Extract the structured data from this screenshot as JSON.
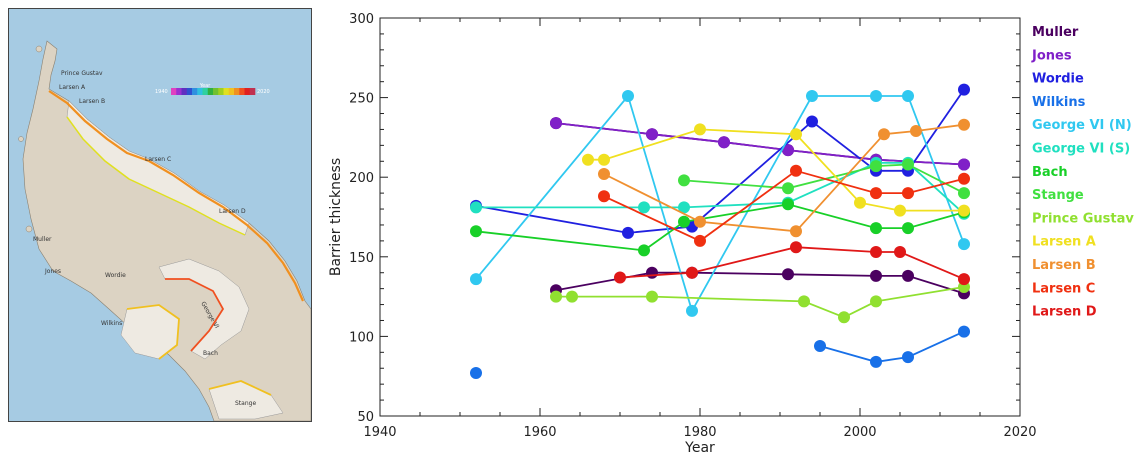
{
  "map": {
    "colorbar_title": "Year",
    "colorbar_min": "1940",
    "colorbar_max": "2020",
    "colorbar_colors": [
      "#e040c0",
      "#9b30d0",
      "#6030c0",
      "#3050d0",
      "#3090e0",
      "#30c0e0",
      "#30d0a0",
      "#30b040",
      "#70c030",
      "#a0d020",
      "#e0e020",
      "#f0c020",
      "#f09020",
      "#f05020",
      "#e02020",
      "#c03050"
    ],
    "labels": [
      {
        "id": "prince-gustav",
        "text": "Prince Gustav"
      },
      {
        "id": "larsen-a",
        "text": "Larsen A"
      },
      {
        "id": "larsen-b",
        "text": "Larsen B"
      },
      {
        "id": "larsen-c",
        "text": "Larsen C"
      },
      {
        "id": "larsen-d",
        "text": "Larsen D"
      },
      {
        "id": "muller",
        "text": "Muller"
      },
      {
        "id": "jones",
        "text": "Jones"
      },
      {
        "id": "wordie",
        "text": "Wordie"
      },
      {
        "id": "george-vi",
        "text": "George VI"
      },
      {
        "id": "wilkins",
        "text": "Wilkins"
      },
      {
        "id": "bach",
        "text": "Bach"
      },
      {
        "id": "stange",
        "text": "Stange"
      }
    ]
  },
  "chart_data": {
    "type": "line",
    "title": "",
    "xlabel": "Year",
    "ylabel": "Barrier thickness",
    "xlim": [
      1940,
      2020
    ],
    "ylim": [
      50,
      300
    ],
    "xticks": [
      1940,
      1960,
      1980,
      2000,
      2020
    ],
    "yticks": [
      50,
      100,
      150,
      200,
      250,
      300
    ],
    "grid": false,
    "legend_position": "right",
    "series": [
      {
        "name": "Muller",
        "color": "#4b0060",
        "segments": [
          [
            [
              1962,
              234
            ],
            [
              1974,
              227
            ],
            [
              1983,
              222
            ],
            [
              1991,
              217
            ],
            [
              2002,
              211
            ],
            [
              2013,
              208
            ]
          ],
          [
            [
              1962,
              129
            ],
            [
              1974,
              140
            ],
            [
              1979,
              140
            ],
            [
              1991,
              139
            ],
            [
              2002,
              138
            ],
            [
              2006,
              138
            ],
            [
              2013,
              127
            ]
          ]
        ]
      },
      {
        "name": "Jones",
        "color": "#8020c8",
        "segments": [
          [
            [
              1962,
              234
            ],
            [
              1974,
              227
            ],
            [
              1983,
              222
            ],
            [
              1991,
              217
            ],
            [
              2002,
              211
            ],
            [
              2013,
              208
            ]
          ]
        ]
      },
      {
        "name": "Wordie",
        "color": "#2020e0",
        "segments": [
          [
            [
              1952,
              182
            ],
            [
              1971,
              165
            ],
            [
              1979,
              169
            ],
            [
              1994,
              235
            ],
            [
              2002,
              204
            ],
            [
              2006,
              204
            ],
            [
              2013,
              255
            ]
          ]
        ]
      },
      {
        "name": "Wilkins",
        "color": "#1870e8",
        "segments": [
          [
            [
              1952,
              77
            ]
          ],
          [
            [
              1995,
              94
            ],
            [
              2002,
              84
            ],
            [
              2006,
              87
            ],
            [
              2013,
              103
            ]
          ]
        ]
      },
      {
        "name": "George VI (N)",
        "color": "#30c8f0",
        "segments": [
          [
            [
              1952,
              136
            ],
            [
              1971,
              251
            ],
            [
              1979,
              116
            ],
            [
              1994,
              251
            ],
            [
              2002,
              251
            ],
            [
              2006,
              251
            ],
            [
              2013,
              158
            ]
          ]
        ]
      },
      {
        "name": "George VI (S)",
        "color": "#20e0c0",
        "segments": [
          [
            [
              1952,
              181
            ],
            [
              1973,
              181
            ],
            [
              1978,
              181
            ],
            [
              1991,
              184
            ],
            [
              2002,
              209
            ],
            [
              2006,
              209
            ],
            [
              2013,
              177
            ]
          ]
        ]
      },
      {
        "name": "Bach",
        "color": "#18d028",
        "segments": [
          [
            [
              1952,
              166
            ],
            [
              1973,
              154
            ],
            [
              1978,
              172
            ],
            [
              1991,
              183
            ],
            [
              2002,
              168
            ],
            [
              2006,
              168
            ],
            [
              2013,
              178
            ]
          ]
        ]
      },
      {
        "name": "Stange",
        "color": "#40e040",
        "segments": [
          [
            [
              1978,
              198
            ],
            [
              1991,
              193
            ],
            [
              2002,
              207
            ],
            [
              2006,
              208
            ],
            [
              2013,
              190
            ]
          ]
        ]
      },
      {
        "name": "Prince Gustav",
        "color": "#90e030",
        "segments": [
          [
            [
              1962,
              125
            ],
            [
              1964,
              125
            ],
            [
              1974,
              125
            ],
            [
              1993,
              122
            ],
            [
              1998,
              112
            ],
            [
              2002,
              122
            ],
            [
              2013,
              131
            ]
          ]
        ]
      },
      {
        "name": "Larsen A",
        "color": "#f0e020",
        "segments": [
          [
            [
              1966,
              211
            ],
            [
              1968,
              211
            ],
            [
              1980,
              230
            ],
            [
              1992,
              227
            ],
            [
              2000,
              184
            ],
            [
              2005,
              179
            ],
            [
              2013,
              179
            ]
          ]
        ]
      },
      {
        "name": "Larsen B",
        "color": "#f09030",
        "segments": [
          [
            [
              1968,
              202
            ],
            [
              1980,
              172
            ],
            [
              1992,
              166
            ],
            [
              2003,
              227
            ],
            [
              2007,
              229
            ],
            [
              2013,
              233
            ]
          ]
        ]
      },
      {
        "name": "Larsen C",
        "color": "#f03010",
        "segments": [
          [
            [
              1968,
              188
            ],
            [
              1980,
              160
            ],
            [
              1992,
              204
            ],
            [
              2002,
              190
            ],
            [
              2006,
              190
            ],
            [
              2013,
              199
            ]
          ]
        ]
      },
      {
        "name": "Larsen D",
        "color": "#e01818",
        "segments": [
          [
            [
              1970,
              137
            ],
            [
              1979,
              140
            ],
            [
              1992,
              156
            ],
            [
              2002,
              153
            ],
            [
              2005,
              153
            ],
            [
              2013,
              136
            ]
          ]
        ]
      }
    ]
  }
}
